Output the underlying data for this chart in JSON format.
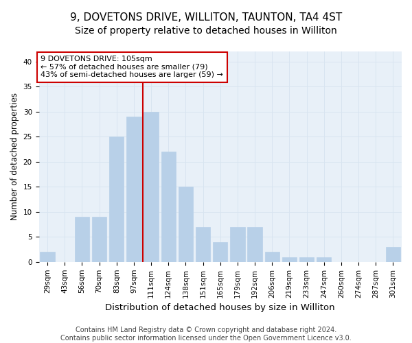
{
  "title": "9, DOVETONS DRIVE, WILLITON, TAUNTON, TA4 4ST",
  "subtitle": "Size of property relative to detached houses in Williton",
  "xlabel": "Distribution of detached houses by size in Williton",
  "ylabel": "Number of detached properties",
  "categories": [
    "29sqm",
    "43sqm",
    "56sqm",
    "70sqm",
    "83sqm",
    "97sqm",
    "111sqm",
    "124sqm",
    "138sqm",
    "151sqm",
    "165sqm",
    "179sqm",
    "192sqm",
    "206sqm",
    "219sqm",
    "233sqm",
    "247sqm",
    "260sqm",
    "274sqm",
    "287sqm",
    "301sqm"
  ],
  "values": [
    2,
    0,
    9,
    9,
    25,
    29,
    30,
    22,
    15,
    7,
    4,
    7,
    7,
    2,
    1,
    1,
    1,
    0,
    0,
    0,
    3
  ],
  "bar_color": "#b8d0e8",
  "bar_edge_color": "#b8d0e8",
  "red_line_index": 6,
  "annotation_line1": "9 DOVETONS DRIVE: 105sqm",
  "annotation_line2": "← 57% of detached houses are smaller (79)",
  "annotation_line3": "43% of semi-detached houses are larger (59) →",
  "annotation_box_color": "#ffffff",
  "annotation_box_edge": "#cc0000",
  "red_line_color": "#cc0000",
  "grid_color": "#d8e4f0",
  "background_color": "#ffffff",
  "plot_bg_color": "#e8f0f8",
  "ylim": [
    0,
    42
  ],
  "yticks": [
    0,
    5,
    10,
    15,
    20,
    25,
    30,
    35,
    40
  ],
  "footer1": "Contains HM Land Registry data © Crown copyright and database right 2024.",
  "footer2": "Contains public sector information licensed under the Open Government Licence v3.0.",
  "title_fontsize": 11,
  "subtitle_fontsize": 10,
  "xlabel_fontsize": 9.5,
  "ylabel_fontsize": 8.5,
  "tick_fontsize": 7.5,
  "annotation_fontsize": 8,
  "footer_fontsize": 7
}
